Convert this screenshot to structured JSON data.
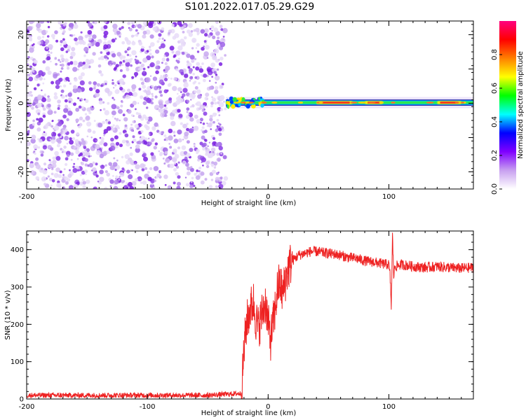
{
  "figure_title": "S101.2022.017.05.29.G29",
  "chart_data": [
    {
      "type": "heatmap",
      "title": "",
      "xlabel": "Height of straight line (km)",
      "ylabel": "Frequency (Hz)",
      "xlim": [
        -200,
        170
      ],
      "ylim": [
        -25,
        24
      ],
      "x_ticks": [
        -200,
        -100,
        0,
        100
      ],
      "y_ticks": [
        -20,
        -10,
        0,
        10,
        20
      ],
      "noise_region_x": [
        -200,
        -35
      ],
      "signal_band": {
        "center_hz": 0.2,
        "start_km": -35,
        "end_km": 170,
        "hot_segments_km": [
          [
            40,
            70
          ],
          [
            80,
            95
          ],
          [
            140,
            160
          ]
        ]
      },
      "colorbar": {
        "label": "Normalized spectral amplitude",
        "range": [
          0,
          1
        ],
        "ticks": [
          0.0,
          0.2,
          0.4,
          0.6,
          0.8
        ],
        "tick_labels": [
          "0.0",
          "0.2",
          "0.4",
          "0.6",
          "0.8"
        ],
        "colors": [
          "#ffffff",
          "#c8a0f0",
          "#8000ff",
          "#0000ff",
          "#00ffff",
          "#00ff00",
          "#ffff00",
          "#ff8000",
          "#ff0000",
          "#ff0080"
        ]
      }
    },
    {
      "type": "line",
      "title": "",
      "xlabel": "Height of straight line (km)",
      "ylabel": "SNR (10 * v/v)",
      "xlim": [
        -200,
        170
      ],
      "ylim": [
        0,
        450
      ],
      "x_ticks": [
        -200,
        -100,
        0,
        100
      ],
      "y_ticks": [
        0,
        100,
        200,
        300,
        400
      ],
      "series": [
        {
          "name": "SNR",
          "color": "#ee2222",
          "x": [
            -200,
            -150,
            -100,
            -50,
            -22,
            -20,
            -18,
            -15,
            -12,
            -10,
            -8,
            -5,
            -2,
            0,
            2,
            5,
            8,
            10,
            12,
            15,
            18,
            20,
            25,
            30,
            35,
            40,
            45,
            50,
            55,
            60,
            65,
            70,
            75,
            80,
            85,
            90,
            95,
            100,
            101,
            102,
            103,
            104,
            105,
            110,
            115,
            120,
            130,
            140,
            150,
            160,
            170
          ],
          "y": [
            10,
            10,
            10,
            10,
            15,
            130,
            200,
            240,
            260,
            210,
            190,
            230,
            260,
            200,
            160,
            220,
            300,
            310,
            280,
            330,
            360,
            370,
            385,
            390,
            395,
            395,
            392,
            390,
            388,
            385,
            380,
            378,
            375,
            370,
            368,
            365,
            362,
            360,
            330,
            245,
            440,
            330,
            355,
            360,
            358,
            355,
            352,
            355,
            352,
            350,
            352
          ],
          "noise_amplitude": 14
        }
      ]
    }
  ]
}
